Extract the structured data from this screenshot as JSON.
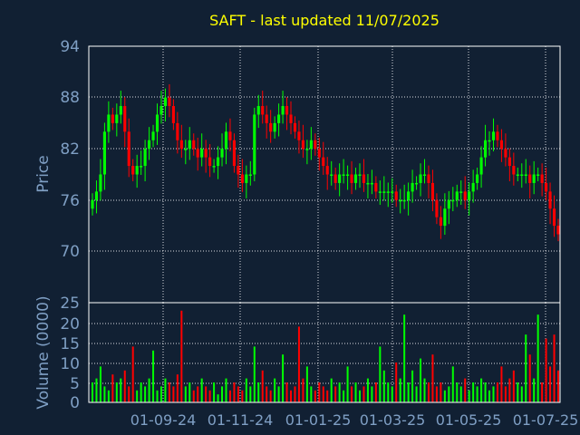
{
  "title": "SAFT - last updated 11/07/2025",
  "colors": {
    "background": "#112033",
    "axis_text": "#7f9fc4",
    "up": "#00ff00",
    "down": "#ff0000",
    "grid": "#ffffff",
    "frame": "#ffffff",
    "title": "#ffff00"
  },
  "chart_data": [
    {
      "type": "candlestick",
      "ylabel": "Price",
      "ylim": [
        64,
        94
      ],
      "yticks": [
        "94",
        "88",
        "82",
        "76",
        "70"
      ],
      "grid": true,
      "x_ticks": [
        "01-09-24",
        "01-11-24",
        "01-01-25",
        "01-03-25",
        "01-05-25",
        "01-07-25"
      ],
      "close_series": [
        76,
        77,
        79,
        84,
        86,
        85,
        86,
        87,
        84,
        80,
        79,
        80,
        80,
        82,
        83,
        84,
        86,
        87,
        88,
        87,
        85,
        83,
        82,
        82,
        83,
        82,
        81,
        82,
        81,
        80,
        80,
        81,
        82,
        84,
        83,
        80,
        79,
        78,
        79,
        79,
        86,
        87,
        86,
        85,
        84,
        85,
        86,
        87,
        86,
        85,
        84,
        83,
        82,
        82,
        83,
        82,
        81,
        80,
        79,
        79,
        78,
        79,
        79,
        79,
        78,
        79,
        79,
        78,
        78,
        78,
        77,
        77,
        77,
        77,
        77,
        76,
        76,
        76,
        77,
        78,
        78,
        79,
        79,
        78,
        76,
        74,
        73,
        75,
        76,
        76,
        77,
        77,
        76,
        77,
        78,
        79,
        81,
        83,
        83,
        84,
        83,
        82,
        81,
        80,
        79,
        79,
        79,
        79,
        78,
        79,
        79,
        78,
        77,
        75,
        73,
        72
      ]
    },
    {
      "type": "bar",
      "ylabel": "Volume (0000)",
      "ylim": [
        0,
        25
      ],
      "yticks": [
        "25",
        "20",
        "15",
        "10",
        "5",
        "0"
      ],
      "grid": true,
      "values": [
        5,
        6,
        9,
        4,
        3,
        7,
        5,
        6,
        8,
        4,
        14,
        3,
        5,
        4,
        6,
        13,
        3,
        4,
        6,
        5,
        4,
        7,
        23,
        4,
        5,
        3,
        4,
        6,
        4,
        3,
        5,
        2,
        4,
        6,
        3,
        5,
        4,
        3,
        6,
        4,
        14,
        5,
        8,
        4,
        3,
        6,
        4,
        12,
        5,
        3,
        4,
        19,
        6,
        9,
        4,
        3,
        5,
        4,
        3,
        6,
        4,
        5,
        3,
        9,
        4,
        5,
        3,
        4,
        6,
        4,
        5,
        14,
        8,
        5,
        4,
        10,
        6,
        22,
        5,
        8,
        4,
        11,
        6,
        5,
        12,
        4,
        5,
        3,
        4,
        9,
        5,
        4,
        6,
        3,
        5,
        4,
        6,
        5,
        3,
        4,
        5,
        9,
        4,
        6,
        8,
        5,
        4,
        17,
        12,
        6,
        22,
        5,
        16,
        9,
        17,
        8
      ]
    }
  ]
}
